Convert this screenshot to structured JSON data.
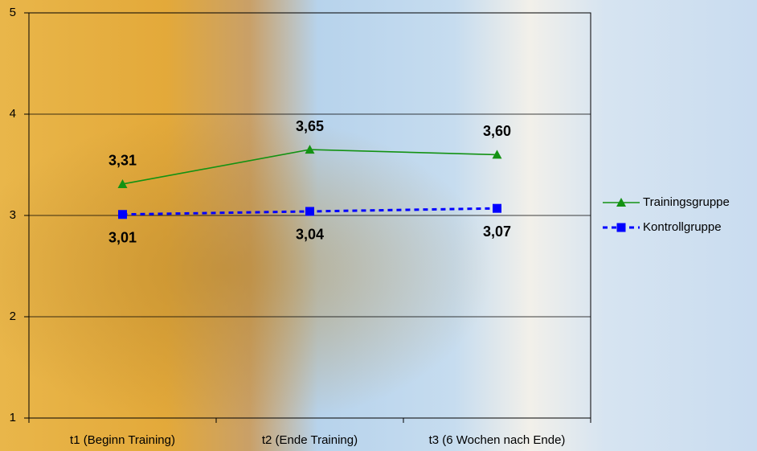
{
  "chart_data": {
    "type": "line",
    "categories": [
      "t1 (Beginn Training)",
      "t2 (Ende Training)",
      "t3 (6 Wochen nach Ende)"
    ],
    "series": [
      {
        "name": "Trainingsgruppe",
        "color": "#139213",
        "marker": "triangle",
        "line_style": "solid",
        "label_position": "above",
        "values": [
          3.31,
          3.65,
          3.6
        ],
        "value_labels": [
          "3,31",
          "3,65",
          "3,60"
        ]
      },
      {
        "name": "Kontrollgruppe",
        "color": "#0000ff",
        "marker": "square",
        "line_style": "dashed",
        "label_position": "below",
        "values": [
          3.01,
          3.04,
          3.07
        ],
        "value_labels": [
          "3,01",
          "3,04",
          "3,07"
        ]
      }
    ],
    "ylim": [
      1,
      5
    ],
    "yticks": [
      1,
      2,
      3,
      4,
      5
    ],
    "grid": true,
    "legend": "right"
  }
}
